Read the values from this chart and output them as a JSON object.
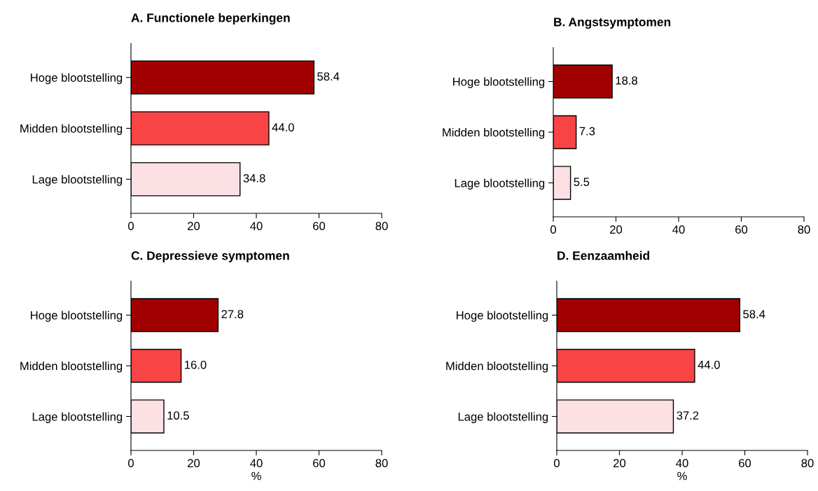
{
  "chart_data": [
    {
      "type": "bar",
      "orientation": "horizontal",
      "title": "A. Functionele beperkingen",
      "categories": [
        "Hoge blootstelling",
        "Midden blootstelling",
        "Lage blootstelling"
      ],
      "values": [
        58.4,
        44.0,
        34.8
      ],
      "value_labels": [
        "58.4",
        "44.0",
        "34.8"
      ],
      "colors": [
        "#a00000",
        "#f84444",
        "#fde0e4"
      ],
      "xlim": [
        0,
        80
      ],
      "xticks": [
        0,
        20,
        40,
        60,
        80
      ],
      "grid": false
    },
    {
      "type": "bar",
      "orientation": "horizontal",
      "title": "B. Angstsymptomen",
      "categories": [
        "Hoge blootstelling",
        "Midden blootstelling",
        "Lage blootstelling"
      ],
      "values": [
        18.8,
        7.3,
        5.5
      ],
      "value_labels": [
        "18.8",
        "7.3",
        "5.5"
      ],
      "colors": [
        "#a00000",
        "#f84444",
        "#fde0e4"
      ],
      "xlim": [
        0,
        80
      ],
      "xticks": [
        0,
        20,
        40,
        60,
        80
      ],
      "grid": false
    },
    {
      "type": "bar",
      "orientation": "horizontal",
      "title": "C. Depressieve symptomen",
      "xlabel": "%",
      "categories": [
        "Hoge blootstelling",
        "Midden blootstelling",
        "Lage blootstelling"
      ],
      "values": [
        27.8,
        16.0,
        10.5
      ],
      "value_labels": [
        "27.8",
        "16.0",
        "10.5"
      ],
      "colors": [
        "#a00000",
        "#f84444",
        "#fde0e4"
      ],
      "xlim": [
        0,
        80
      ],
      "xticks": [
        0,
        20,
        40,
        60,
        80
      ],
      "grid": false
    },
    {
      "type": "bar",
      "orientation": "horizontal",
      "title": "D. Eenzaamheid",
      "xlabel": "%",
      "categories": [
        "Hoge blootstelling",
        "Midden blootstelling",
        "Lage blootstelling"
      ],
      "values": [
        58.4,
        44.0,
        37.2
      ],
      "value_labels": [
        "58.4",
        "44.0",
        "37.2"
      ],
      "colors": [
        "#a00000",
        "#f84444",
        "#fde0e4"
      ],
      "xlim": [
        0,
        80
      ],
      "xticks": [
        0,
        20,
        40,
        60,
        80
      ],
      "grid": false
    }
  ]
}
